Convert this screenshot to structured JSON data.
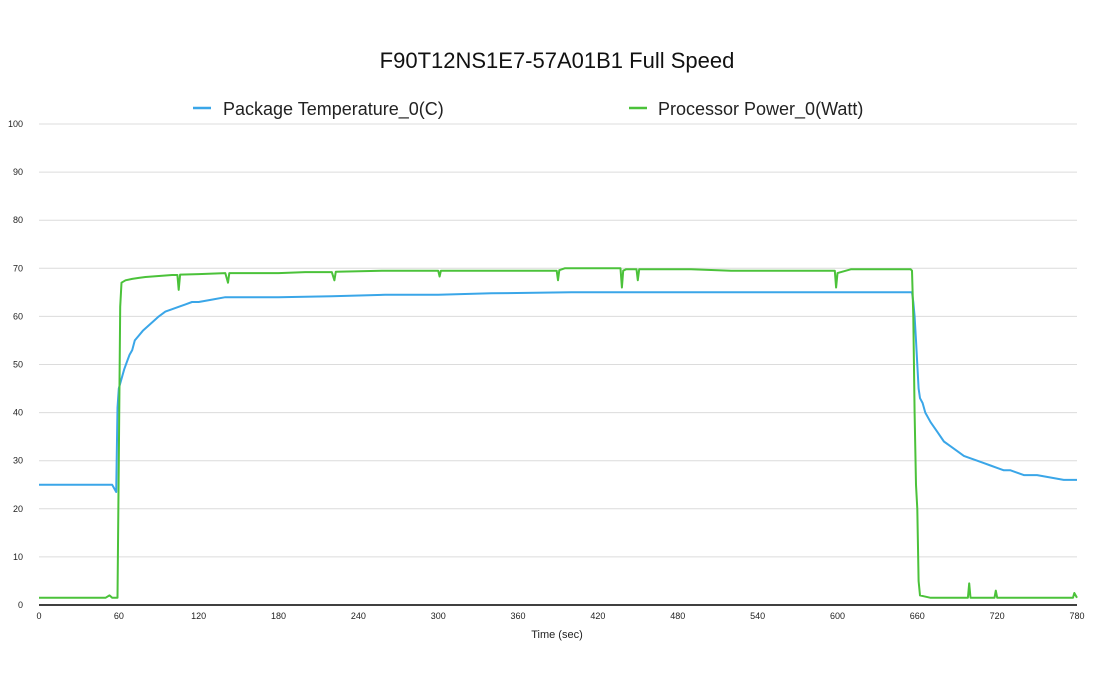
{
  "chart_data": {
    "type": "line",
    "title": "F90T12NS1E7-57A01B1 Full Speed",
    "xlabel": "Time (sec)",
    "ylabel": "",
    "xlim": [
      0,
      780
    ],
    "ylim": [
      0,
      100
    ],
    "x_ticks": [
      0,
      60,
      120,
      180,
      240,
      300,
      360,
      420,
      480,
      540,
      600,
      660,
      720,
      780
    ],
    "y_ticks": [
      0,
      10,
      20,
      30,
      40,
      50,
      60,
      70,
      80,
      90,
      100
    ],
    "grid": true,
    "legend_position": "top",
    "series": [
      {
        "name": "Package Temperature_0(C)",
        "color": "#3aa6e8",
        "points": [
          [
            0,
            25
          ],
          [
            55,
            25
          ],
          [
            58,
            23.5
          ],
          [
            59,
            41
          ],
          [
            60,
            45
          ],
          [
            62,
            47
          ],
          [
            64,
            49
          ],
          [
            66,
            50.5
          ],
          [
            68,
            52
          ],
          [
            70,
            53
          ],
          [
            72,
            55
          ],
          [
            75,
            56
          ],
          [
            78,
            57
          ],
          [
            82,
            58
          ],
          [
            86,
            59
          ],
          [
            90,
            60
          ],
          [
            95,
            61
          ],
          [
            100,
            61.5
          ],
          [
            105,
            62
          ],
          [
            110,
            62.5
          ],
          [
            115,
            63
          ],
          [
            120,
            63
          ],
          [
            130,
            63.5
          ],
          [
            140,
            64
          ],
          [
            150,
            64
          ],
          [
            180,
            64
          ],
          [
            220,
            64.2
          ],
          [
            260,
            64.5
          ],
          [
            300,
            64.5
          ],
          [
            340,
            64.8
          ],
          [
            400,
            65
          ],
          [
            460,
            65
          ],
          [
            520,
            65
          ],
          [
            580,
            65
          ],
          [
            640,
            65
          ],
          [
            656,
            65
          ],
          [
            657,
            63
          ],
          [
            658,
            60
          ],
          [
            659,
            55
          ],
          [
            660,
            50
          ],
          [
            661,
            45
          ],
          [
            662,
            43
          ],
          [
            664,
            42
          ],
          [
            666,
            40
          ],
          [
            670,
            38
          ],
          [
            675,
            36
          ],
          [
            680,
            34
          ],
          [
            685,
            33
          ],
          [
            690,
            32
          ],
          [
            695,
            31
          ],
          [
            700,
            30.5
          ],
          [
            705,
            30
          ],
          [
            710,
            29.5
          ],
          [
            715,
            29
          ],
          [
            720,
            28.5
          ],
          [
            725,
            28
          ],
          [
            730,
            28
          ],
          [
            735,
            27.5
          ],
          [
            740,
            27
          ],
          [
            750,
            27
          ],
          [
            760,
            26.5
          ],
          [
            770,
            26
          ],
          [
            780,
            26
          ]
        ]
      },
      {
        "name": "Processor Power_0(Watt)",
        "color": "#4bc23a",
        "points": [
          [
            0,
            1.5
          ],
          [
            50,
            1.5
          ],
          [
            53,
            2
          ],
          [
            55,
            1.5
          ],
          [
            59,
            1.5
          ],
          [
            60,
            30
          ],
          [
            61,
            62
          ],
          [
            62,
            67
          ],
          [
            65,
            67.5
          ],
          [
            70,
            67.8
          ],
          [
            75,
            68
          ],
          [
            80,
            68.2
          ],
          [
            90,
            68.4
          ],
          [
            100,
            68.6
          ],
          [
            104,
            68.6
          ],
          [
            105,
            65.5
          ],
          [
            106,
            68.7
          ],
          [
            120,
            68.8
          ],
          [
            140,
            69
          ],
          [
            142,
            67
          ],
          [
            143,
            69
          ],
          [
            180,
            69
          ],
          [
            200,
            69.2
          ],
          [
            220,
            69.2
          ],
          [
            222,
            67.5
          ],
          [
            223,
            69.3
          ],
          [
            260,
            69.5
          ],
          [
            300,
            69.5
          ],
          [
            301,
            68.3
          ],
          [
            302,
            69.5
          ],
          [
            330,
            69.5
          ],
          [
            360,
            69.5
          ],
          [
            389,
            69.5
          ],
          [
            390,
            67.5
          ],
          [
            391,
            69.6
          ],
          [
            395,
            70
          ],
          [
            420,
            70
          ],
          [
            437,
            70
          ],
          [
            438,
            66
          ],
          [
            439,
            69.5
          ],
          [
            441,
            69.8
          ],
          [
            449,
            69.8
          ],
          [
            450,
            67.5
          ],
          [
            451,
            69.8
          ],
          [
            470,
            69.8
          ],
          [
            490,
            69.8
          ],
          [
            520,
            69.5
          ],
          [
            560,
            69.5
          ],
          [
            580,
            69.5
          ],
          [
            598,
            69.5
          ],
          [
            599,
            66
          ],
          [
            600,
            69
          ],
          [
            610,
            69.8
          ],
          [
            640,
            69.8
          ],
          [
            655,
            69.8
          ],
          [
            656,
            69.5
          ],
          [
            657,
            60
          ],
          [
            658,
            40
          ],
          [
            659,
            25
          ],
          [
            660,
            20
          ],
          [
            661,
            5
          ],
          [
            662,
            2
          ],
          [
            665,
            1.8
          ],
          [
            670,
            1.5
          ],
          [
            698,
            1.5
          ],
          [
            699,
            4.5
          ],
          [
            700,
            1.5
          ],
          [
            718,
            1.5
          ],
          [
            719,
            3
          ],
          [
            720,
            1.5
          ],
          [
            760,
            1.5
          ],
          [
            777,
            1.5
          ],
          [
            778,
            2.5
          ],
          [
            780,
            1.5
          ]
        ]
      }
    ]
  }
}
